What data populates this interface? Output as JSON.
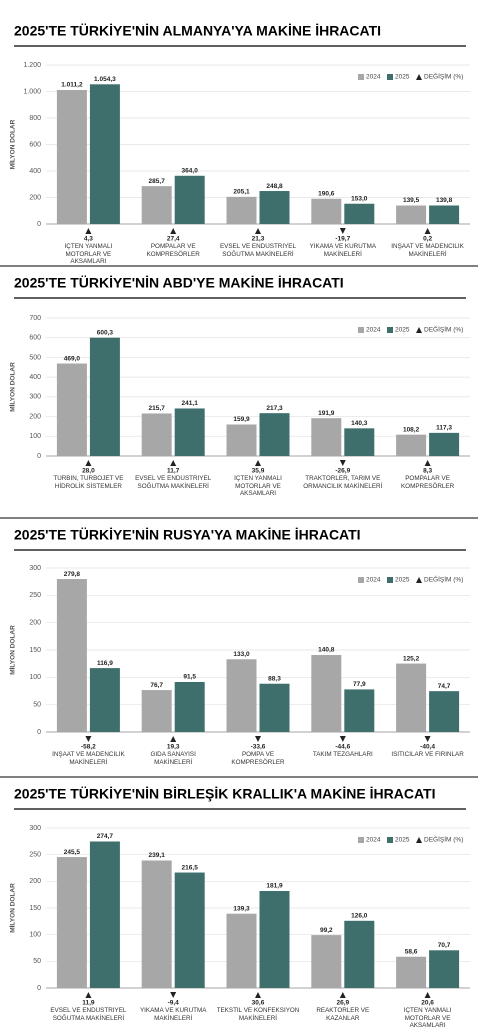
{
  "chart_data": [
    {
      "type": "bar",
      "title": "2025'TE TÜRKİYE'NİN ALMANYA'YA MAKİNE İHRACATI",
      "y_label": "MİLYON DOLAR",
      "categories": [
        "İÇTEN YANMALI MOTORLAR VE AKSAMLARI",
        "POMPALAR VE KOMPRESÖRLER",
        "EVSEL VE ENDÜSTRİYEL SOĞUTMA MAKİNELERİ",
        "YIKAMA VE KURUTMA MAKİNELERİ",
        "İNŞAAT VE MADENCİLİK MAKİNELERİ"
      ],
      "series": [
        {
          "name": "2024",
          "color": "#a7a7a7",
          "values": [
            1011.2,
            285.7,
            205.1,
            190.6,
            139.5
          ],
          "value_labels": [
            "1.011,2",
            "285,7",
            "205,1",
            "190,6",
            "139,5"
          ]
        },
        {
          "name": "2025",
          "color": "#3e6f6d",
          "values": [
            1054.3,
            364.0,
            248.8,
            153.0,
            139.8
          ],
          "value_labels": [
            "1.054,3",
            "364,0",
            "248,8",
            "153,0",
            "139,8"
          ]
        }
      ],
      "change": {
        "name": "DEĞİŞİM (%)",
        "values": [
          4.3,
          27.4,
          21.3,
          -19.7,
          0.2
        ],
        "value_labels": [
          "4,3",
          "27,4",
          "21,3",
          "-19,7",
          "0,2"
        ]
      },
      "ylim": [
        0,
        1200
      ],
      "yticks": [
        0,
        200,
        400,
        600,
        800,
        {
          "value": 1000,
          "label": "1.000"
        },
        {
          "value": 1200,
          "label": "1.200"
        }
      ],
      "grid": true,
      "legend": "top-right"
    },
    {
      "type": "bar",
      "title": "2025'TE TÜRKİYE'NİN ABD'YE MAKİNE İHRACATI",
      "y_label": "MİLYON DOLAR",
      "categories": [
        "TÜRBİN, TURBOJET VE HİDROLİK SİSTEMLER",
        "EVSEL VE ENDÜSTRİYEL SOĞUTMA MAKİNELERİ",
        "İÇTEN YANMALI MOTORLAR VE AKSAMLARI",
        "TRAKTÖRLER, TARIM VE ORMANCILIK MAKİNELERİ",
        "POMPALAR VE KOMPRESÖRLER"
      ],
      "series": [
        {
          "name": "2024",
          "color": "#a7a7a7",
          "values": [
            469.0,
            215.7,
            159.9,
            191.9,
            108.2
          ],
          "value_labels": [
            "469,0",
            "215,7",
            "159,9",
            "191,9",
            "108,2"
          ]
        },
        {
          "name": "2025",
          "color": "#3e6f6d",
          "values": [
            600.3,
            241.1,
            217.3,
            140.3,
            117.3
          ],
          "value_labels": [
            "600,3",
            "241,1",
            "217,3",
            "140,3",
            "117,3"
          ]
        }
      ],
      "change": {
        "name": "DEĞİŞİM (%)",
        "values": [
          28.0,
          11.7,
          35.9,
          -26.9,
          8.3
        ],
        "value_labels": [
          "28,0",
          "11,7",
          "35,9",
          "-26,9",
          "8,3"
        ]
      },
      "ylim": [
        0,
        700
      ],
      "yticks": [
        0,
        100,
        200,
        300,
        400,
        500,
        600,
        700
      ],
      "grid": true,
      "legend": "top-right"
    },
    {
      "type": "bar",
      "title": "2025'TE TÜRKİYE'NİN RUSYA'YA MAKİNE İHRACATI",
      "y_label": "MİLYON DOLAR",
      "categories": [
        "İNŞAAT VE MADENCİLİK MAKİNELERİ",
        "GIDA SANAYİSİ MAKİNELERİ",
        "POMPA VE KOMPRESÖRLER",
        "TAKIM TEZGÂHLARI",
        "ISITICILAR VE FIRINLAR"
      ],
      "series": [
        {
          "name": "2024",
          "color": "#a7a7a7",
          "values": [
            279.8,
            76.7,
            133.0,
            140.8,
            125.2
          ],
          "value_labels": [
            "279,8",
            "76,7",
            "133,0",
            "140,8",
            "125,2"
          ]
        },
        {
          "name": "2025",
          "color": "#3e6f6d",
          "values": [
            116.9,
            91.5,
            88.3,
            77.9,
            74.7
          ],
          "value_labels": [
            "116,9",
            "91,5",
            "88,3",
            "77,9",
            "74,7"
          ]
        }
      ],
      "change": {
        "name": "DEĞİŞİM (%)",
        "values": [
          -58.2,
          19.3,
          -33.6,
          -44.6,
          -40.4
        ],
        "value_labels": [
          "-58,2",
          "19,3",
          "-33,6",
          "-44,6",
          "-40,4"
        ]
      },
      "ylim": [
        0,
        300
      ],
      "yticks": [
        0,
        50,
        100,
        150,
        200,
        250,
        300
      ],
      "grid": true,
      "legend": "top-right"
    },
    {
      "type": "bar",
      "title": "2025'TE TÜRKİYE'NİN BİRLEŞİK KRALLIK'A MAKİNE İHRACATI",
      "y_label": "MİLYON DOLAR",
      "categories": [
        "EVSEL VE ENDÜSTRİYEL SOĞUTMA MAKİNELERİ",
        "YIKAMA VE KURUTMA MAKİNELERİ",
        "TEKSTİL VE KONFEKSİYON MAKİNELERİ",
        "REAKTÖRLER VE KAZANLAR",
        "İÇTEN YANMALI MOTORLAR VE AKSAMLARI"
      ],
      "series": [
        {
          "name": "2024",
          "color": "#a7a7a7",
          "values": [
            245.5,
            239.1,
            139.3,
            99.2,
            58.6
          ],
          "value_labels": [
            "245,5",
            "239,1",
            "139,3",
            "99,2",
            "58,6"
          ]
        },
        {
          "name": "2025",
          "color": "#3e6f6d",
          "values": [
            274.7,
            216.5,
            181.9,
            126.0,
            70.7
          ],
          "value_labels": [
            "274,7",
            "216,5",
            "181,9",
            "126,0",
            "70,7"
          ]
        }
      ],
      "change": {
        "name": "DEĞİŞİM (%)",
        "values": [
          11.9,
          -9.4,
          30.6,
          26.9,
          20.6
        ],
        "value_labels": [
          "11,9",
          "-9,4",
          "30,6",
          "26,9",
          "20,6"
        ]
      },
      "ylim": [
        0,
        300
      ],
      "yticks": [
        0,
        50,
        100,
        150,
        200,
        250,
        300
      ],
      "grid": true,
      "legend": "top-right"
    }
  ]
}
